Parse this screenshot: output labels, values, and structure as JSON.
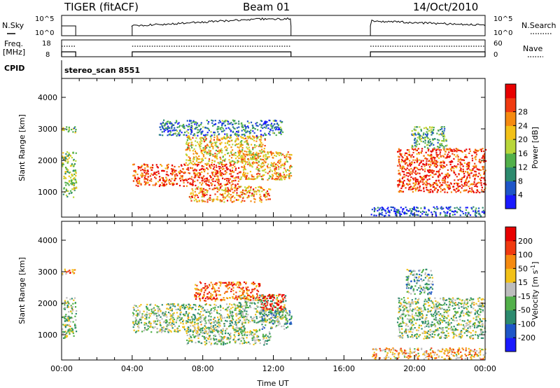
{
  "header": {
    "radar": "TIGER (fitACF)",
    "beam": "Beam 01",
    "date": "14/Oct/2010",
    "cpid_label": "CPID",
    "cpid_value": "stereo_scan 8551"
  },
  "top_strips": {
    "nsky_label": "N.Sky",
    "nsky_top": "10^5",
    "nsky_bottom": "10^0",
    "nsearch_label": "N.Search",
    "nsearch_top": "10^5",
    "nsearch_bottom": "10^0",
    "freq_label_line1": "Freq.",
    "freq_label_line2": "[MHz]",
    "freq_top": "18",
    "freq_bottom": "8",
    "nave_label": "Nave",
    "nave_top": "60",
    "nave_bottom": "0"
  },
  "chart_data": [
    {
      "type": "heatmap",
      "name": "power-panel",
      "ylabel": "Slant Range [km]",
      "xlabel": "",
      "xlim": [
        0,
        24
      ],
      "ylim": [
        200,
        4600
      ],
      "yticks": [
        1000,
        2000,
        3000,
        4000
      ],
      "colorbar": {
        "label": "Power [dB]",
        "ticks": [
          "4",
          "8",
          "12",
          "16",
          "20",
          "24",
          "28"
        ],
        "colors": [
          "#1a1aff",
          "#1e56c8",
          "#2c8a6e",
          "#52b04a",
          "#b8d63a",
          "#f2c118",
          "#f58a10",
          "#f03a10",
          "#e80000"
        ]
      },
      "regions": [
        {
          "t0": 0.0,
          "t1": 0.8,
          "r0": 850,
          "r1": 2300,
          "level": 0.45
        },
        {
          "t0": 0.0,
          "t1": 0.8,
          "r0": 2900,
          "r1": 3100,
          "level": 0.4
        },
        {
          "t0": 4.0,
          "t1": 10.0,
          "r0": 1200,
          "r1": 1900,
          "level": 0.85
        },
        {
          "t0": 10.0,
          "t1": 13.0,
          "r0": 1400,
          "r1": 2300,
          "level": 0.65
        },
        {
          "t0": 7.2,
          "t1": 11.8,
          "r0": 700,
          "r1": 1200,
          "level": 0.7
        },
        {
          "t0": 7.0,
          "t1": 11.5,
          "r0": 1900,
          "r1": 2800,
          "level": 0.6
        },
        {
          "t0": 5.5,
          "t1": 12.5,
          "r0": 2800,
          "r1": 3300,
          "level": 0.25
        },
        {
          "t0": 17.5,
          "t1": 24.0,
          "r0": 250,
          "r1": 550,
          "level": 0.15
        },
        {
          "t0": 19.0,
          "t1": 24.0,
          "r0": 1000,
          "r1": 2400,
          "level": 0.85
        },
        {
          "t0": 19.8,
          "t1": 21.8,
          "r0": 2400,
          "r1": 3100,
          "level": 0.35
        }
      ]
    },
    {
      "type": "heatmap",
      "name": "velocity-panel",
      "ylabel": "Slant Range [km]",
      "xlabel": "Time UT",
      "xlim": [
        0,
        24
      ],
      "ylim": [
        200,
        4600
      ],
      "yticks": [
        1000,
        2000,
        3000,
        4000
      ],
      "xticks": [
        "00:00",
        "04:00",
        "08:00",
        "12:00",
        "16:00",
        "20:00",
        "00:00"
      ],
      "colorbar": {
        "label": "Velocity [m s^-1]",
        "ticks": [
          "200",
          "100",
          "50",
          "15",
          "-15",
          "-50",
          "-100",
          "-200"
        ],
        "colors": [
          "#1a1aff",
          "#1e56c8",
          "#2c8a6e",
          "#52b04a",
          "#bdbdbd",
          "#f2c118",
          "#f58a10",
          "#f03a10",
          "#e80000"
        ]
      },
      "regions": [
        {
          "t0": 0.0,
          "t1": 0.8,
          "r0": 900,
          "r1": 2200,
          "level": 0.45
        },
        {
          "t0": 0.0,
          "t1": 0.8,
          "r0": 2900,
          "r1": 3100,
          "level": 0.7
        },
        {
          "t0": 4.0,
          "t1": 10.5,
          "r0": 1100,
          "r1": 2000,
          "level": 0.45
        },
        {
          "t0": 10.0,
          "t1": 12.7,
          "r0": 1400,
          "r1": 2300,
          "level": 0.45
        },
        {
          "t0": 11.3,
          "t1": 12.6,
          "r0": 1800,
          "r1": 2300,
          "level": 0.95
        },
        {
          "t0": 11.3,
          "t1": 13.0,
          "r0": 1200,
          "r1": 1800,
          "level": 0.35
        },
        {
          "t0": 7.5,
          "t1": 11.2,
          "r0": 2100,
          "r1": 2700,
          "level": 0.8
        },
        {
          "t0": 7.0,
          "t1": 11.8,
          "r0": 700,
          "r1": 1200,
          "level": 0.45
        },
        {
          "t0": 17.5,
          "t1": 24.0,
          "r0": 250,
          "r1": 600,
          "level": 0.65
        },
        {
          "t0": 19.0,
          "t1": 24.0,
          "r0": 900,
          "r1": 2200,
          "level": 0.45
        },
        {
          "t0": 19.5,
          "t1": 21.0,
          "r0": 2300,
          "r1": 3100,
          "level": 0.35
        }
      ]
    }
  ]
}
